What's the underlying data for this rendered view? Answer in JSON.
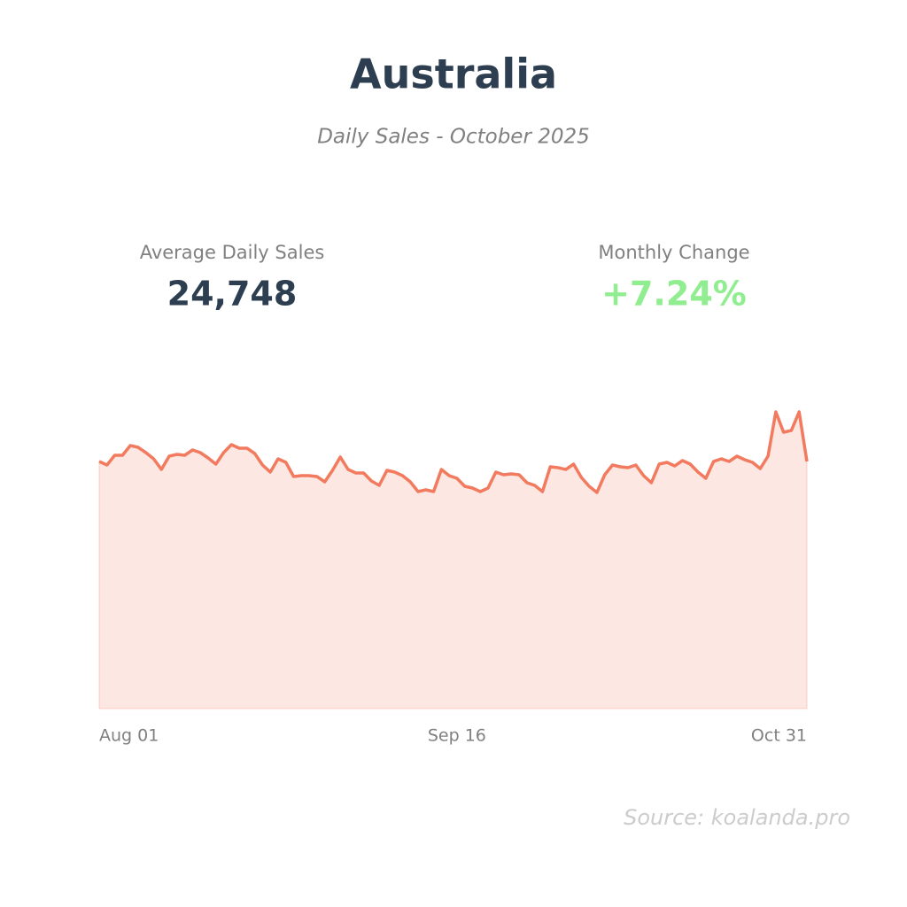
{
  "chart_data": {
    "type": "area",
    "title": "Australia",
    "subtitle": "Daily Sales - October 2025",
    "stats": [
      {
        "label": "Average Daily Sales",
        "value": 24748,
        "value_label": "24,748",
        "color": "#2c3e50"
      },
      {
        "label": "Monthly Change",
        "value": 7.24,
        "value_label": "+7.24%",
        "color": "#90ee90"
      }
    ],
    "categories": [
      "Aug 01",
      null,
      null,
      null,
      null,
      null,
      null,
      null,
      null,
      null,
      null,
      null,
      null,
      null,
      null,
      null,
      null,
      null,
      null,
      null,
      null,
      null,
      null,
      null,
      null,
      null,
      null,
      null,
      null,
      null,
      null,
      null,
      null,
      null,
      null,
      null,
      null,
      null,
      null,
      null,
      null,
      null,
      null,
      null,
      null,
      null,
      "Sep 16",
      null,
      null,
      null,
      null,
      null,
      null,
      null,
      null,
      null,
      null,
      null,
      null,
      null,
      null,
      null,
      null,
      null,
      null,
      null,
      null,
      null,
      null,
      null,
      null,
      null,
      null,
      null,
      null,
      null,
      null,
      null,
      null,
      null,
      null,
      null,
      null,
      null,
      null,
      null,
      null,
      null,
      null,
      null,
      null,
      "Oct 31"
    ],
    "values": [
      25110,
      24750,
      25740,
      25740,
      26730,
      26550,
      26010,
      25380,
      24300,
      25650,
      25830,
      25740,
      26280,
      26010,
      25470,
      24840,
      26010,
      26820,
      26460,
      26460,
      25920,
      24750,
      24030,
      25380,
      25020,
      23580,
      23670,
      23670,
      23580,
      23040,
      24210,
      25560,
      24300,
      23940,
      23940,
      23130,
      22680,
      24210,
      24030,
      23670,
      23040,
      22050,
      22230,
      22050,
      24300,
      23670,
      23400,
      22590,
      22410,
      22050,
      22410,
      24030,
      23760,
      23850,
      23760,
      22950,
      22680,
      22050,
      24570,
      24480,
      24300,
      24840,
      23490,
      22590,
      21960,
      23760,
      24750,
      24570,
      24480,
      24750,
      23670,
      22950,
      24840,
      25020,
      24660,
      25200,
      24840,
      24030,
      23400,
      25110,
      25380,
      25110,
      25650,
      25290,
      25020,
      24390,
      25650,
      30150,
      28080,
      28260,
      30150,
      25110
    ],
    "color": "#f27a5e",
    "ylim": [
      0,
      36000
    ],
    "source": "Source: koalanda.pro"
  }
}
